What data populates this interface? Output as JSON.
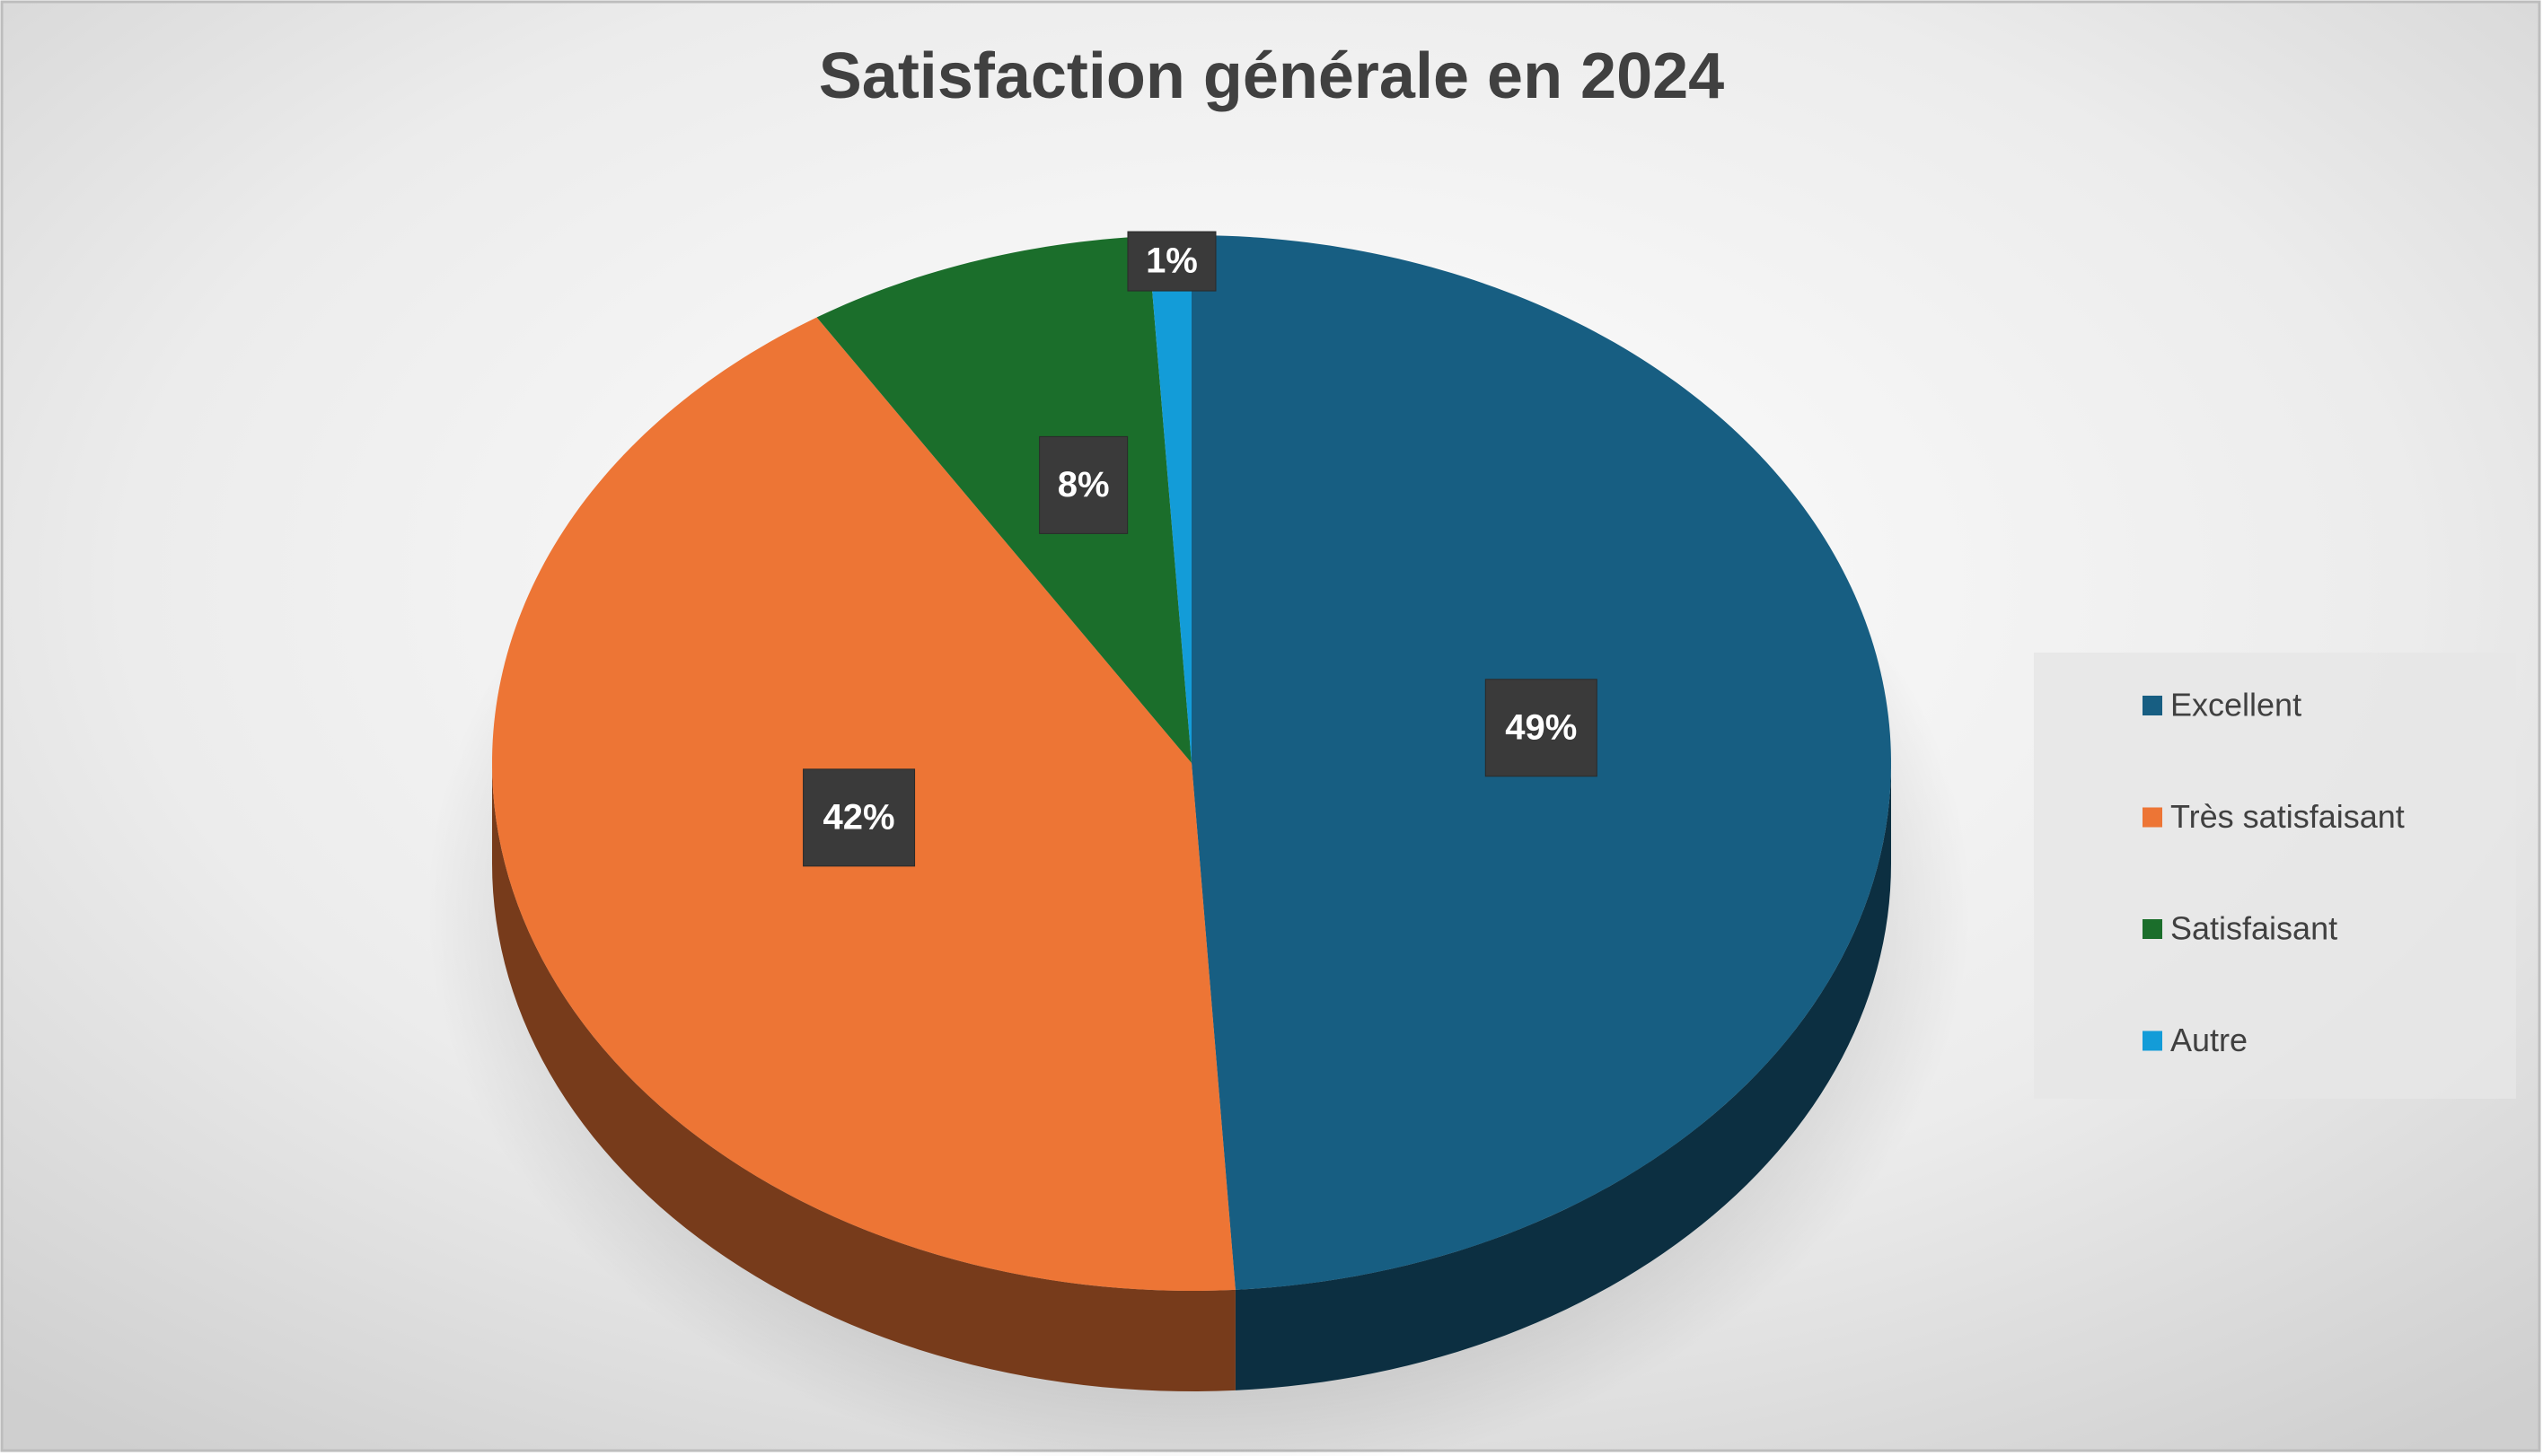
{
  "chart_data": {
    "type": "pie",
    "title": "Satisfaction générale en 2024",
    "categories": [
      "Excellent",
      "Très satisfaisant",
      "Satisfaisant",
      "Autre"
    ],
    "values": [
      49,
      42,
      8,
      1
    ],
    "value_labels": [
      "49%",
      "42%",
      "8%",
      "1%"
    ],
    "colors": [
      "#175e82",
      "#ed7535",
      "#1b6e2b",
      "#139cd8"
    ],
    "legend": "right"
  }
}
